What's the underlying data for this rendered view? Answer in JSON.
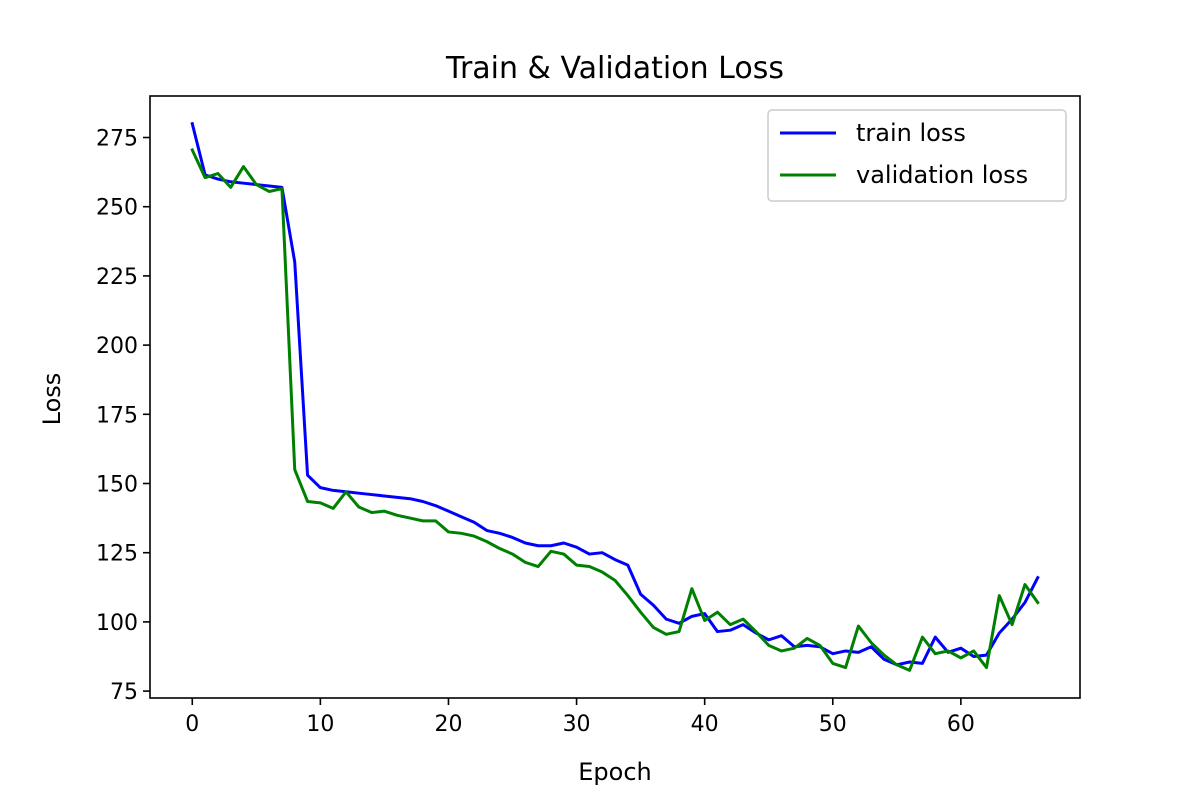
{
  "chart_data": {
    "type": "line",
    "title": "Train & Validation Loss",
    "xlabel": "Epoch",
    "ylabel": "Loss",
    "xlim": [
      -3.3,
      69.3
    ],
    "ylim": [
      72.5,
      290
    ],
    "xticks": [
      0,
      10,
      20,
      30,
      40,
      50,
      60
    ],
    "yticks": [
      75,
      100,
      125,
      150,
      175,
      200,
      225,
      250,
      275
    ],
    "grid": false,
    "legend_position": "top-right",
    "x": [
      0,
      1,
      2,
      3,
      4,
      5,
      6,
      7,
      8,
      9,
      10,
      11,
      12,
      13,
      14,
      15,
      16,
      17,
      18,
      19,
      20,
      21,
      22,
      23,
      24,
      25,
      26,
      27,
      28,
      29,
      30,
      31,
      32,
      33,
      34,
      35,
      36,
      37,
      38,
      39,
      40,
      41,
      42,
      43,
      44,
      45,
      46,
      47,
      48,
      49,
      50,
      51,
      52,
      53,
      54,
      55,
      56,
      57,
      58,
      59,
      60,
      61,
      62,
      63,
      64,
      65,
      66
    ],
    "series": [
      {
        "name": "train loss",
        "color": "#0000ff",
        "values": [
          280,
          261.5,
          260,
          259,
          258.5,
          258,
          257.5,
          257,
          230,
          153,
          148.5,
          147.5,
          147,
          146.5,
          146,
          145.5,
          145,
          144.5,
          143.5,
          142,
          140,
          138,
          136,
          133,
          132,
          130.5,
          128.5,
          127.5,
          127.5,
          128.5,
          127,
          124.5,
          125,
          122.5,
          120.5,
          110,
          106,
          101,
          99.5,
          102,
          103,
          96.5,
          97,
          99,
          96,
          93.5,
          95,
          91,
          91.5,
          91,
          88.5,
          89.5,
          89,
          91,
          86.5,
          84.5,
          85.5,
          85,
          94.5,
          89,
          90.5,
          87.5,
          88,
          96,
          101,
          107,
          116
        ]
      },
      {
        "name": "validation loss",
        "color": "#008000",
        "values": [
          270.5,
          260.5,
          262,
          257,
          264.5,
          258,
          255.5,
          256.5,
          155,
          143.5,
          143,
          141,
          147,
          141.5,
          139.5,
          140,
          138.5,
          137.5,
          136.5,
          136.5,
          132.5,
          132,
          131,
          129,
          126.5,
          124.5,
          121.5,
          120,
          125.5,
          124.5,
          120.5,
          120,
          118,
          115,
          109.5,
          103.5,
          98,
          95.5,
          96.5,
          112,
          100.5,
          103.5,
          99,
          101,
          96.5,
          91.5,
          89.5,
          90.5,
          94,
          91.5,
          85,
          83.5,
          98.5,
          92.5,
          88,
          84.5,
          82.5,
          94.5,
          88.5,
          89.5,
          87,
          89.5,
          83.5,
          109.5,
          99,
          113.5,
          107
        ]
      }
    ]
  }
}
